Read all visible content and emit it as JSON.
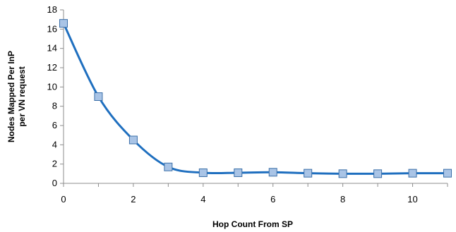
{
  "chart_data": {
    "type": "line",
    "title": "",
    "xlabel": "Hop Count From SP",
    "ylabel_lines": [
      "Nodes Mapped Per InP",
      "per VN request"
    ],
    "xlim": [
      0,
      11
    ],
    "ylim": [
      0,
      18
    ],
    "xticks": [
      0,
      2,
      4,
      6,
      8,
      10
    ],
    "yticks": [
      0,
      2,
      4,
      6,
      8,
      10,
      12,
      14,
      16,
      18
    ],
    "grid": false,
    "legend": "none",
    "x": [
      0,
      1,
      2,
      3,
      4,
      5,
      6,
      7,
      8,
      9,
      10,
      11
    ],
    "series": [
      {
        "values": [
          16.6,
          9.0,
          4.5,
          1.7,
          1.1,
          1.1,
          1.15,
          1.05,
          1.0,
          1.0,
          1.05,
          1.05
        ],
        "line_color": "#1F6FBF",
        "marker_fill": "#A9C4E6",
        "marker_stroke": "#3B6FA8",
        "marker": "square"
      }
    ]
  }
}
